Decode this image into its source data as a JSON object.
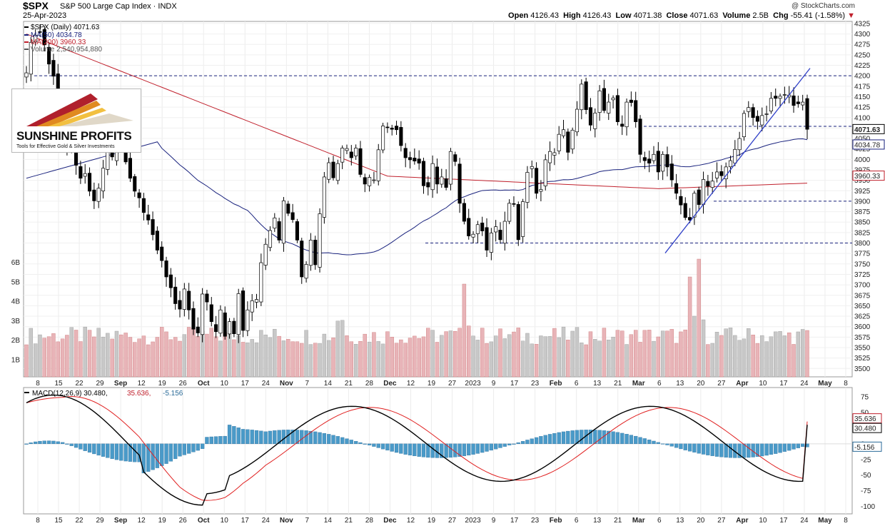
{
  "header": {
    "symbol": "$SPX",
    "name": "S&P 500 Large Cap Index",
    "exchange": "INDX",
    "date": "25-Apr-2023",
    "copyright": "@ StockCharts.com",
    "quote": {
      "open_label": "Open",
      "open": "4126.43",
      "high_label": "High",
      "high": "4126.43",
      "low_label": "Low",
      "low": "4071.38",
      "close_label": "Close",
      "close": "4071.63",
      "volume_label": "Volume",
      "volume": "2.5B",
      "chg_label": "Chg",
      "chg": "-55.41 (-1.58%)"
    }
  },
  "legend": {
    "price": "$SPX (Daily) 4071.63",
    "ma50": "MA(50) 4034.78",
    "ma200": "MA(200) 3960.33",
    "volume": "Volume 2,540,954,880",
    "macd_name": "MACD(12,26,9)",
    "macd_val": "30.480,",
    "macd_signal": "35.636,",
    "macd_hist": "-5.156"
  },
  "logo": {
    "title": "SUNSHINE PROFITS",
    "tagline": "Tools for Effective Gold & Silver Investments"
  },
  "colors": {
    "up_bar": "#c8c8c8",
    "down_bar": "#e8b4b8",
    "ma50": "#1a237e",
    "ma200": "#c0202c",
    "macd_line": "#000000",
    "signal_line": "#e02020",
    "hist": "#4a9ac8",
    "trend": "#3040c8"
  },
  "price_badges": [
    "4071.63",
    "4034.78",
    "3960.33"
  ],
  "macd_badges": [
    "35.636",
    "30.480",
    "-5.156"
  ],
  "chart_data": {
    "type": "candlestick",
    "price_axis": {
      "ylim": [
        3480,
        4330
      ],
      "ticks": [
        3500,
        3525,
        3550,
        3575,
        3600,
        3625,
        3650,
        3675,
        3700,
        3725,
        3750,
        3775,
        3800,
        3825,
        3850,
        3875,
        3900,
        3925,
        3950,
        3975,
        4000,
        4025,
        4050,
        4075,
        4100,
        4125,
        4150,
        4175,
        4200,
        4225,
        4250,
        4275,
        4300,
        4325
      ]
    },
    "volume_axis": {
      "ticks": [
        "1B",
        "2B",
        "3B",
        "4B",
        "5B",
        "6B"
      ]
    },
    "macd_axis": {
      "ylim": [
        -112,
        90
      ],
      "ticks": [
        75,
        50,
        25,
        0,
        -25,
        -50,
        -75,
        -100
      ]
    },
    "x_labels": [
      "8",
      "15",
      "22",
      "29",
      "Sep",
      "12",
      "19",
      "26",
      "Oct",
      "10",
      "17",
      "24",
      "Nov",
      "7",
      "14",
      "21",
      "28",
      "Dec",
      "12",
      "19",
      "27",
      "2023",
      "9",
      "17",
      "23",
      "Feb",
      "6",
      "13",
      "21",
      "Mar",
      "6",
      "13",
      "20",
      "27",
      "Apr",
      "10",
      "17",
      "24",
      "May",
      "8"
    ],
    "horizontal_levels": [
      4200,
      4079,
      3900,
      3800
    ],
    "trendline": {
      "from": [
        "Mar 13",
        3776
      ],
      "to": [
        "Apr 26",
        4218
      ]
    },
    "closes": [
      4207,
      4280,
      4297,
      4305,
      4274,
      4228,
      4199,
      4140,
      4058,
      4030,
      4057,
      3986,
      3955,
      3966,
      3924,
      3901,
      3931,
      3979,
      4057,
      4006,
      4110,
      4067,
      3994,
      3955,
      3924,
      3908,
      3873,
      3855,
      3820,
      3783,
      3758,
      3719,
      3693,
      3655,
      3642,
      3690,
      3640,
      3594,
      3585,
      3678,
      3659,
      3612,
      3588,
      3640,
      3577,
      3612,
      3583,
      3679,
      3591,
      3640,
      3662,
      3665,
      3753,
      3797,
      3830,
      3860,
      3807,
      3901,
      3871,
      3856,
      3807,
      3719,
      3749,
      3807,
      3748,
      3870,
      3958,
      3992,
      3956,
      3990,
      4027,
      4026,
      4004,
      4027,
      3964,
      3941,
      3957,
      3951,
      4023,
      4080,
      4076,
      4072,
      4071,
      4033,
      4004,
      3999,
      3996,
      3991,
      3937,
      3934,
      3990,
      3941,
      3958,
      3933,
      4019,
      3995,
      3895,
      3852,
      3817,
      3821,
      3844,
      3829,
      3783,
      3824,
      3839,
      3808,
      3852,
      3895,
      3893,
      3808,
      3899,
      3969,
      3983,
      3919,
      3928,
      3999,
      4019,
      4016,
      4060,
      4071,
      4017,
      4070,
      4120,
      4180,
      4119,
      4082,
      4111,
      4164,
      4117,
      4137,
      4147,
      4090,
      4079,
      4137,
      4136,
      4090,
      4012,
      3997,
      3991,
      4012,
      3970,
      4012,
      3982,
      3951,
      3919,
      3891,
      3861,
      3855,
      3919,
      3892,
      3952,
      3936,
      3948,
      3970,
      3961,
      3982,
      3997,
      4024,
      4050,
      4110,
      4124,
      4100,
      4091,
      4105,
      4109,
      4146,
      4146,
      4151,
      4155,
      4154,
      4129,
      4133,
      4137,
      4072
    ]
  }
}
